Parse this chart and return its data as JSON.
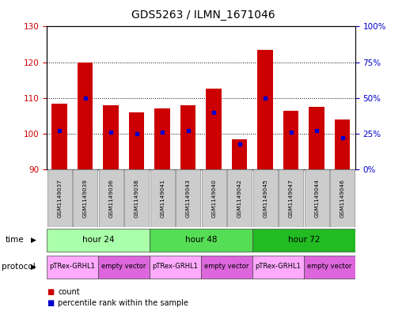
{
  "title": "GDS5263 / ILMN_1671046",
  "samples": [
    "GSM1149037",
    "GSM1149039",
    "GSM1149036",
    "GSM1149038",
    "GSM1149041",
    "GSM1149043",
    "GSM1149040",
    "GSM1149042",
    "GSM1149045",
    "GSM1149047",
    "GSM1149044",
    "GSM1149046"
  ],
  "counts": [
    108.5,
    120.0,
    108.0,
    106.0,
    107.0,
    108.0,
    112.5,
    98.5,
    123.5,
    106.5,
    107.5,
    104.0
  ],
  "percentiles": [
    27,
    50,
    26,
    25,
    26,
    27,
    40,
    18,
    50,
    26,
    27,
    22
  ],
  "ylim_left": [
    90,
    130
  ],
  "ylim_right": [
    0,
    100
  ],
  "y_ticks_left": [
    90,
    100,
    110,
    120,
    130
  ],
  "y_ticks_right": [
    0,
    25,
    50,
    75,
    100
  ],
  "bar_color": "#cc0000",
  "marker_color": "#0000cc",
  "bar_width": 0.6,
  "time_groups": [
    {
      "label": "hour 24",
      "samples": [
        0,
        1,
        2,
        3
      ],
      "color": "#aaffaa"
    },
    {
      "label": "hour 48",
      "samples": [
        4,
        5,
        6,
        7
      ],
      "color": "#55dd55"
    },
    {
      "label": "hour 72",
      "samples": [
        8,
        9,
        10,
        11
      ],
      "color": "#22bb22"
    }
  ],
  "protocol_groups": [
    {
      "label": "pTRex-GRHL1",
      "samples": [
        0,
        1
      ],
      "color": "#ffaaff"
    },
    {
      "label": "empty vector",
      "samples": [
        2,
        3
      ],
      "color": "#dd66dd"
    },
    {
      "label": "pTRex-GRHL1",
      "samples": [
        4,
        5
      ],
      "color": "#ffaaff"
    },
    {
      "label": "empty vector",
      "samples": [
        6,
        7
      ],
      "color": "#dd66dd"
    },
    {
      "label": "pTRex-GRHL1",
      "samples": [
        8,
        9
      ],
      "color": "#ffaaff"
    },
    {
      "label": "empty vector",
      "samples": [
        10,
        11
      ],
      "color": "#dd66dd"
    }
  ],
  "left_axis_color": "#cc0000",
  "right_axis_color": "#0000cc",
  "sample_box_color": "#cccccc",
  "legend_count_color": "#cc0000",
  "legend_pct_color": "#0000cc"
}
